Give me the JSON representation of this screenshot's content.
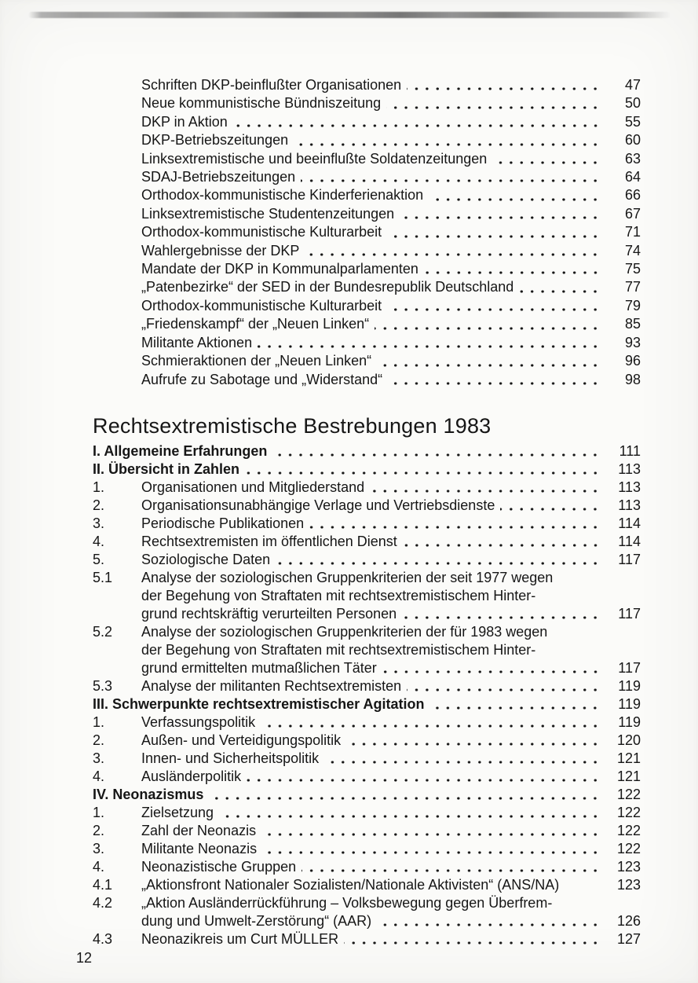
{
  "colors": {
    "ink": "#161616",
    "paper": "#fbfbf9"
  },
  "document": {
    "footer_page_number": "12"
  },
  "toc_upper": {
    "entries": [
      {
        "label": "Schriften DKP-beinflußter Organisationen",
        "page": "47"
      },
      {
        "label": "Neue kommunistische Bündniszeitung",
        "page": "50"
      },
      {
        "label": "DKP in Aktion",
        "page": "55"
      },
      {
        "label": "DKP-Betriebszeitungen",
        "page": "60"
      },
      {
        "label": "Linksextremistische und beeinflußte Soldatenzeitungen",
        "page": "63"
      },
      {
        "label": "SDAJ-Betriebszeitungen",
        "page": "64"
      },
      {
        "label": "Orthodox-kommunistische Kinderferienaktion",
        "page": "66"
      },
      {
        "label": "Linksextremistische Studentenzeitungen",
        "page": "67"
      },
      {
        "label": "Orthodox-kommunistische Kulturarbeit",
        "page": "71"
      },
      {
        "label": "Wahlergebnisse der DKP",
        "page": "74"
      },
      {
        "label": "Mandate der DKP in Kommunalparlamenten",
        "page": "75"
      },
      {
        "label": "„Patenbezirke“ der SED in der Bundesrepublik Deutschland",
        "page": "77"
      },
      {
        "label": "Orthodox-kommunistische Kulturarbeit",
        "page": "79"
      },
      {
        "label": "„Friedenskampf“ der „Neuen Linken“",
        "page": "85"
      },
      {
        "label": "Militante Aktionen",
        "page": "93"
      },
      {
        "label": "Schmieraktionen der „Neuen Linken“",
        "page": "96"
      },
      {
        "label": "Aufrufe zu Sabotage und „Widerstand“",
        "page": "98"
      }
    ]
  },
  "main_section": {
    "heading": "Rechtsextremistische Bestrebungen 1983",
    "rows": [
      {
        "type": "heading",
        "bold": true,
        "text": "I. Allgemeine Erfahrungen",
        "dots": true,
        "page": "111"
      },
      {
        "type": "heading",
        "bold": true,
        "text": "II. Übersicht in Zahlen",
        "dots": true,
        "page": "113"
      },
      {
        "type": "num",
        "num": "1.",
        "text": "Organisationen und Mitgliederstand",
        "dots": true,
        "page": "113"
      },
      {
        "type": "num",
        "num": "2.",
        "text": "Organisationsunabhängige Verlage und Vertriebsdienste",
        "dots": true,
        "page": "113"
      },
      {
        "type": "num",
        "num": "3.",
        "text": "Periodische Publikationen",
        "dots": true,
        "page": "114"
      },
      {
        "type": "num",
        "num": "4.",
        "text": "Rechtsextremisten im öffentlichen Dienst",
        "dots": true,
        "page": "114"
      },
      {
        "type": "num",
        "num": "5.",
        "text": "Soziologische Daten",
        "dots": true,
        "page": "117"
      },
      {
        "type": "num",
        "num": "5.1",
        "text": "Analyse der soziologischen Gruppenkriterien der seit 1977 wegen",
        "dots": false,
        "page": ""
      },
      {
        "type": "num",
        "num": "",
        "text": "der Begehung von Straftaten mit rechtsextremistischem Hinter-",
        "dots": false,
        "page": ""
      },
      {
        "type": "num",
        "num": "",
        "text": "grund rechtskräftig verurteilten Personen",
        "dots": true,
        "page": "117"
      },
      {
        "type": "num",
        "num": "5.2",
        "text": "Analyse der soziologischen Gruppenkriterien der für 1983 wegen",
        "dots": false,
        "page": ""
      },
      {
        "type": "num",
        "num": "",
        "text": "der Begehung von Straftaten mit rechtsextremistischem Hinter-",
        "dots": false,
        "page": ""
      },
      {
        "type": "num",
        "num": "",
        "text": "grund ermittelten mutmaßlichen Täter",
        "dots": true,
        "page": "117"
      },
      {
        "type": "num",
        "num": "5.3",
        "text": "Analyse der militanten Rechtsextremisten",
        "dots": true,
        "page": "119"
      },
      {
        "type": "heading",
        "bold": true,
        "text": "III. Schwerpunkte rechtsextremistischer Agitation",
        "dots": true,
        "page": "119"
      },
      {
        "type": "num",
        "num": "1.",
        "text": "Verfassungspolitik",
        "dots": true,
        "page": "119"
      },
      {
        "type": "num",
        "num": "2.",
        "text": "Außen- und Verteidigungspolitik",
        "dots": true,
        "page": "120"
      },
      {
        "type": "num",
        "num": "3.",
        "text": "Innen- und Sicherheitspolitik",
        "dots": true,
        "page": "121"
      },
      {
        "type": "num",
        "num": "4.",
        "text": "Ausländerpolitik",
        "dots": true,
        "page": "121"
      },
      {
        "type": "heading",
        "bold": true,
        "text": "IV. Neonazismus",
        "dots": true,
        "page": "122"
      },
      {
        "type": "num",
        "num": "1.",
        "text": "Zielsetzung",
        "dots": true,
        "page": "122"
      },
      {
        "type": "num",
        "num": "2.",
        "text": "Zahl der Neonazis",
        "dots": true,
        "page": "122"
      },
      {
        "type": "num",
        "num": "3.",
        "text": "Militante Neonazis",
        "dots": true,
        "page": "122"
      },
      {
        "type": "num",
        "num": "4.",
        "text": "Neonazistische Gruppen",
        "dots": true,
        "page": "123"
      },
      {
        "type": "num",
        "num": "4.1",
        "text": "„Aktionsfront Nationaler Sozialisten/Nationale Aktivisten“ (ANS/NA)",
        "dots": false,
        "page": "123"
      },
      {
        "type": "num",
        "num": "4.2",
        "text": "„Aktion Ausländerrückführung – Volksbewegung gegen Überfrem-",
        "dots": false,
        "page": ""
      },
      {
        "type": "num",
        "num": "",
        "text": "dung und Umwelt-Zerstörung“ (AAR)",
        "dots": true,
        "page": "126"
      },
      {
        "type": "num",
        "num": "4.3",
        "text": "Neonazikreis um Curt MÜLLER",
        "dots": true,
        "page": "127"
      }
    ]
  }
}
